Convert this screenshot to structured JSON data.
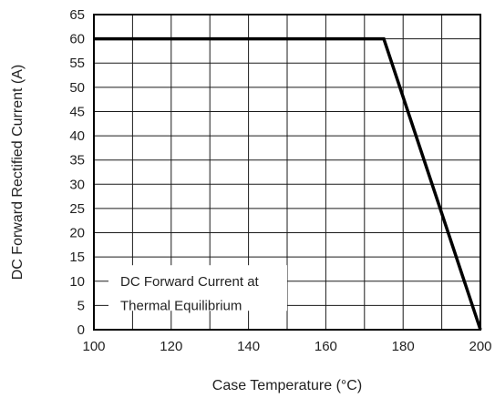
{
  "chart_data": {
    "type": "line",
    "title": "",
    "xlabel": "Case Temperature (°C)",
    "ylabel": "DC Forward Rectified Current (A)",
    "xlim": [
      100,
      200
    ],
    "ylim": [
      0,
      65
    ],
    "x_ticks": [
      100,
      120,
      140,
      160,
      180,
      200
    ],
    "y_ticks": [
      0,
      5,
      10,
      15,
      20,
      25,
      30,
      35,
      40,
      45,
      50,
      55,
      60,
      65
    ],
    "x_grid_step": 10,
    "y_grid_step": 5,
    "grid": true,
    "series": [
      {
        "x": [
          100,
          175,
          200
        ],
        "y": [
          60,
          60,
          0
        ]
      }
    ],
    "annotation": {
      "lines": [
        "DC Forward Current at",
        "Thermal Equilibrium"
      ]
    }
  }
}
